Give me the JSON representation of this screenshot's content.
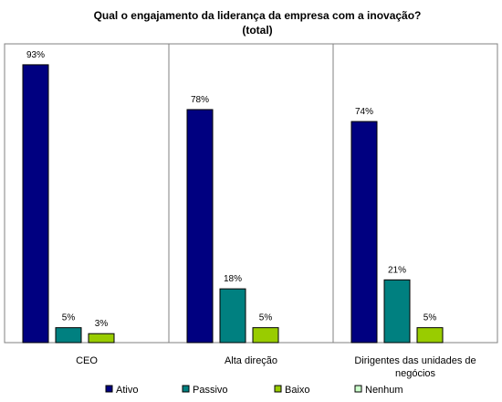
{
  "chart_data": {
    "type": "bar",
    "title": "Qual o engajamento da liderança da empresa com a inovação?",
    "subtitle": "(total)",
    "categories": [
      "CEO",
      "Alta direção",
      "Dirigentes das unidades de negócios"
    ],
    "category_label_lines": [
      [
        "CEO"
      ],
      [
        "Alta direção"
      ],
      [
        "Dirigentes das unidades de",
        "negócios"
      ]
    ],
    "series": [
      {
        "name": "Ativo",
        "color": "#000080",
        "values": [
          93,
          78,
          74
        ],
        "labels": [
          "93%",
          "78%",
          "74%"
        ]
      },
      {
        "name": "Passivo",
        "color": "#008080",
        "values": [
          5,
          18,
          21
        ],
        "labels": [
          "5%",
          "18%",
          "21%"
        ]
      },
      {
        "name": "Baixo",
        "color": "#99CC00",
        "values": [
          3,
          5,
          5
        ],
        "labels": [
          "3%",
          "5%",
          "5%"
        ]
      },
      {
        "name": "Nenhum",
        "color": "#CCFFCC",
        "values": [
          0,
          0,
          0
        ],
        "labels": [
          "",
          "",
          ""
        ]
      }
    ],
    "ylim": [
      0,
      100
    ],
    "xlabel": "",
    "ylabel": "",
    "grid": false,
    "category_separators": true,
    "legend_position": "bottom"
  }
}
